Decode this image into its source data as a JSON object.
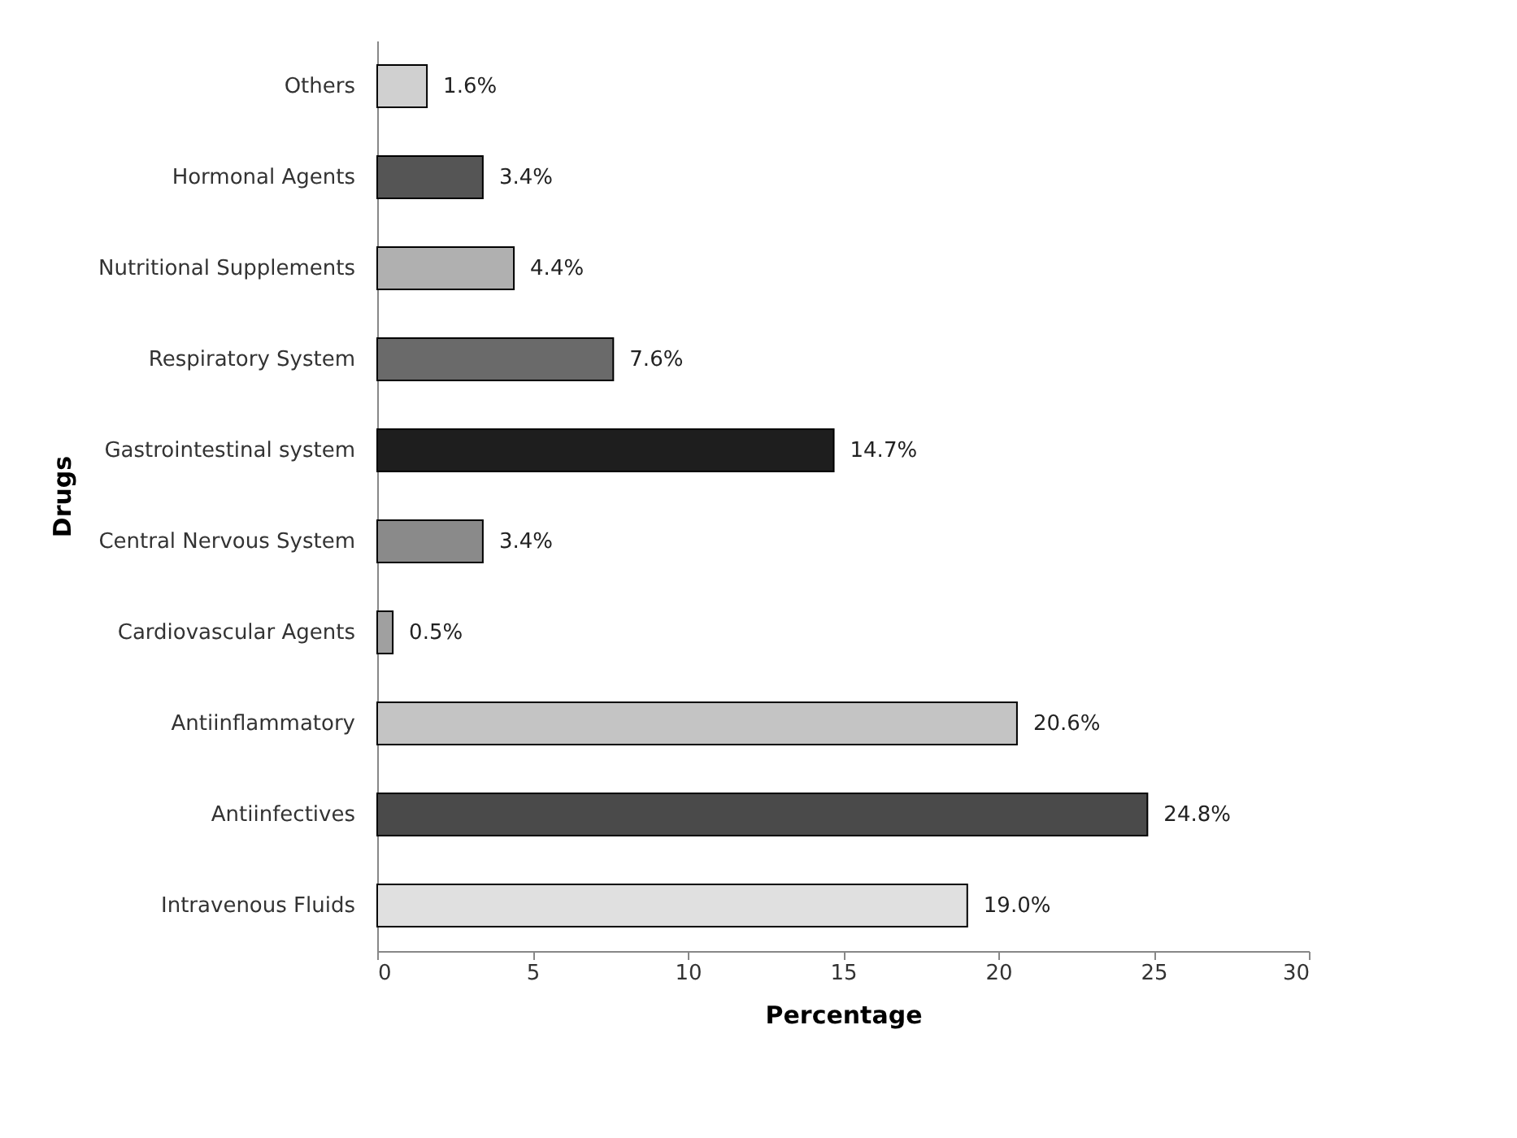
{
  "chart_data": {
    "type": "bar",
    "orientation": "horizontal",
    "xlabel": "Percentage",
    "ylabel": "Drugs",
    "categories": [
      "Others",
      "Hormonal Agents",
      "Nutritional Supplements",
      "Respiratory System",
      "Gastrointestinal system",
      "Central Nervous System",
      "Cardiovascular Agents",
      "Antiinflammatory",
      "Antiinfectives",
      "Intravenous Fluids"
    ],
    "values": [
      1.6,
      3.4,
      4.4,
      7.6,
      14.7,
      3.4,
      0.5,
      20.6,
      24.8,
      19.0
    ],
    "value_labels": [
      "1.6%",
      "3.4%",
      "4.4%",
      "7.6%",
      "14.7%",
      "3.4%",
      "0.5%",
      "20.6%",
      "24.8%",
      "19.0%"
    ],
    "colors": [
      "#d0d0d0",
      "#555555",
      "#b0b0b0",
      "#6a6a6a",
      "#1e1e1e",
      "#8a8a8a",
      "#a0a0a0",
      "#c4c4c4",
      "#4a4a4a",
      "#e0e0e0"
    ],
    "xlim": [
      0,
      30
    ],
    "xticks": [
      0,
      5,
      10,
      15,
      20,
      25,
      30
    ],
    "grid": false
  }
}
